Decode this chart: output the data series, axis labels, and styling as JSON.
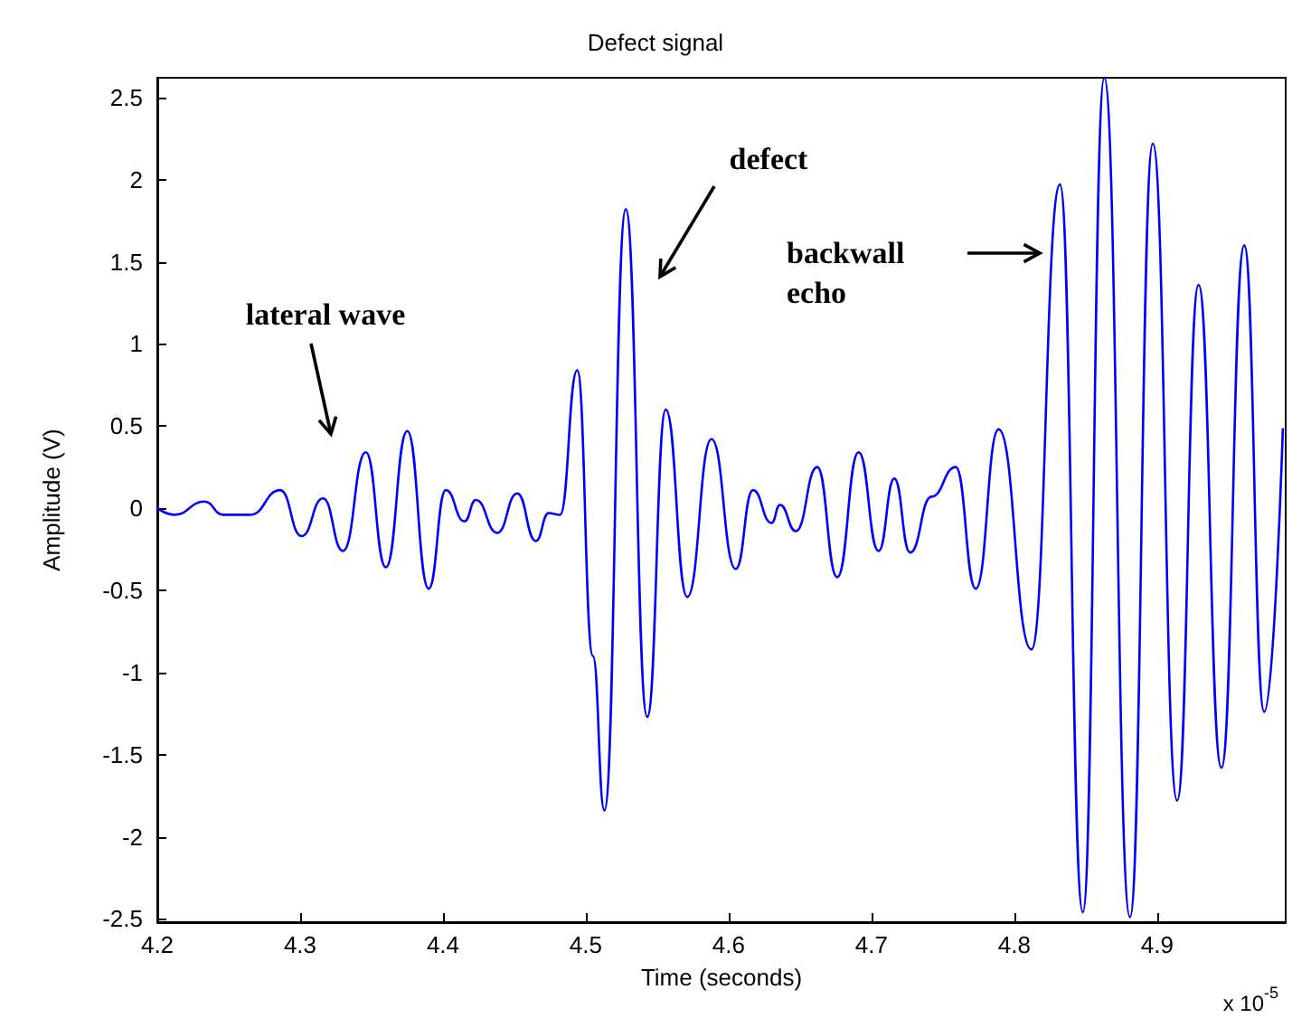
{
  "chart_data": {
    "type": "line",
    "title": "Defect signal",
    "xlabel": "Time (seconds)",
    "ylabel": "Amplitude (V)",
    "xlim": [
      4.2,
      4.99
    ],
    "ylim": [
      -2.52,
      2.62
    ],
    "xticks": [
      4.2,
      4.3,
      4.4,
      4.5,
      4.6,
      4.7,
      4.8,
      4.9
    ],
    "yticks": [
      -2.5,
      -2,
      -1.5,
      -1,
      -0.5,
      0,
      0.5,
      1,
      1.5,
      2,
      2.5
    ],
    "grid": false,
    "legend": false,
    "marker": "none",
    "line_style": "solid",
    "series": [
      {
        "color": "#0000ff",
        "x": [
          4.2,
          4.212,
          4.233,
          4.246,
          4.265,
          4.286,
          4.301,
          4.316,
          4.33,
          4.346,
          4.36,
          4.375,
          4.39,
          4.402,
          4.415,
          4.423,
          4.438,
          4.452,
          4.465,
          4.474,
          4.482,
          4.494,
          4.505,
          4.513,
          4.528,
          4.543,
          4.556,
          4.571,
          4.588,
          4.605,
          4.617,
          4.63,
          4.636,
          4.647,
          4.662,
          4.676,
          4.691,
          4.705,
          4.716,
          4.727,
          4.742,
          4.759,
          4.773,
          4.789,
          4.812,
          4.832,
          4.848,
          4.863,
          4.881,
          4.897,
          4.914,
          4.929,
          4.945,
          4.961,
          4.975,
          4.988
        ],
        "values": [
          0,
          -0.04,
          0.04,
          -0.04,
          -0.04,
          0.11,
          -0.17,
          0.06,
          -0.26,
          0.34,
          -0.36,
          0.47,
          -0.49,
          0.11,
          -0.08,
          0.05,
          -0.15,
          0.09,
          -0.2,
          -0.03,
          -0.04,
          0.84,
          -0.9,
          -1.84,
          1.82,
          -1.27,
          0.6,
          -0.54,
          0.42,
          -0.37,
          0.11,
          -0.09,
          0.02,
          -0.14,
          0.25,
          -0.42,
          0.34,
          -0.26,
          0.18,
          -0.27,
          0.07,
          0.25,
          -0.49,
          0.48,
          -0.86,
          1.97,
          -2.46,
          2.62,
          -2.49,
          2.22,
          -1.78,
          1.36,
          -1.58,
          1.6,
          -1.24,
          0.48
        ]
      }
    ],
    "annotations": [
      "lateral wave",
      "defect",
      "backwall\necho",
      "x 10$^{-5}$"
    ]
  }
}
